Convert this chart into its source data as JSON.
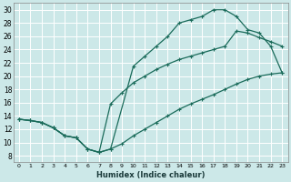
{
  "xlabel": "Humidex (Indice chaleur)",
  "bg_color": "#cce8e8",
  "line_color": "#1a6b5a",
  "grid_color": "#ffffff",
  "xlim": [
    -0.5,
    23.5
  ],
  "ylim": [
    7,
    31
  ],
  "xticks": [
    0,
    1,
    2,
    3,
    4,
    5,
    6,
    7,
    8,
    9,
    10,
    11,
    12,
    13,
    14,
    15,
    16,
    17,
    18,
    19,
    20,
    21,
    22,
    23
  ],
  "yticks": [
    8,
    10,
    12,
    14,
    16,
    18,
    20,
    22,
    24,
    26,
    28,
    30
  ],
  "curve_upper_x": [
    0,
    1,
    2,
    3,
    4,
    5,
    6,
    7,
    8,
    10,
    11,
    12,
    13,
    14,
    15,
    16,
    17,
    18,
    19,
    20,
    21,
    22,
    23
  ],
  "curve_upper_y": [
    13.5,
    13.3,
    13.0,
    12.2,
    11.0,
    10.7,
    9.0,
    8.5,
    9.0,
    21.5,
    23.0,
    24.5,
    26.0,
    28.0,
    28.5,
    29.0,
    30.0,
    30.0,
    29.0,
    27.0,
    26.5,
    24.5,
    20.5
  ],
  "curve_mid_x": [
    0,
    1,
    2,
    3,
    4,
    5,
    6,
    7,
    8,
    9,
    10,
    11,
    12,
    13,
    14,
    15,
    16,
    17,
    18,
    19,
    20,
    21,
    22,
    23
  ],
  "curve_mid_y": [
    13.5,
    13.3,
    13.0,
    12.2,
    11.0,
    10.7,
    9.0,
    8.5,
    15.8,
    17.5,
    19.0,
    20.0,
    21.0,
    21.8,
    22.5,
    23.0,
    23.5,
    24.0,
    24.5,
    26.8,
    26.5,
    25.8,
    25.2,
    24.5
  ],
  "curve_low_x": [
    0,
    1,
    2,
    3,
    4,
    5,
    6,
    7,
    8,
    9,
    10,
    11,
    12,
    13,
    14,
    15,
    16,
    17,
    18,
    19,
    20,
    21,
    22,
    23
  ],
  "curve_low_y": [
    13.5,
    13.3,
    13.0,
    12.2,
    11.0,
    10.7,
    9.0,
    8.5,
    9.0,
    9.8,
    11.0,
    12.0,
    13.0,
    14.0,
    15.0,
    15.8,
    16.5,
    17.2,
    18.0,
    18.8,
    19.5,
    20.0,
    20.3,
    20.5
  ]
}
